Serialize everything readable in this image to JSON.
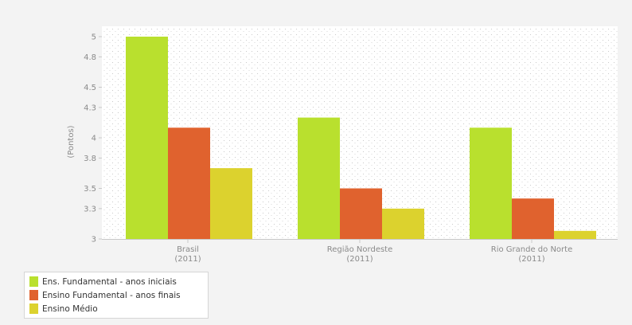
{
  "chart_data": {
    "type": "bar",
    "categories": [
      {
        "name": "Brasil",
        "year": "(2011)"
      },
      {
        "name": "Região Nordeste",
        "year": "(2011)"
      },
      {
        "name": "Rio Grande do Norte",
        "year": "(2011)"
      }
    ],
    "series": [
      {
        "name": "Ens. Fundamental - anos iniciais",
        "color": "#b9e02e",
        "values": [
          5.0,
          4.2,
          4.1
        ]
      },
      {
        "name": "Ensino Fundamental - anos finais",
        "color": "#e0622e",
        "values": [
          4.1,
          3.5,
          3.4
        ]
      },
      {
        "name": "Ensino Médio",
        "color": "#dcd22e",
        "values": [
          3.7,
          3.3,
          3.08
        ]
      }
    ],
    "ylabel": "(Pontos)",
    "ylim": [
      3,
      5
    ],
    "yticks": [
      "5",
      "4.8",
      "4.5",
      "4.3",
      "4",
      "3.8",
      "3.5",
      "3.3",
      "3"
    ],
    "legend_position": "bottom-left",
    "grid": false
  }
}
